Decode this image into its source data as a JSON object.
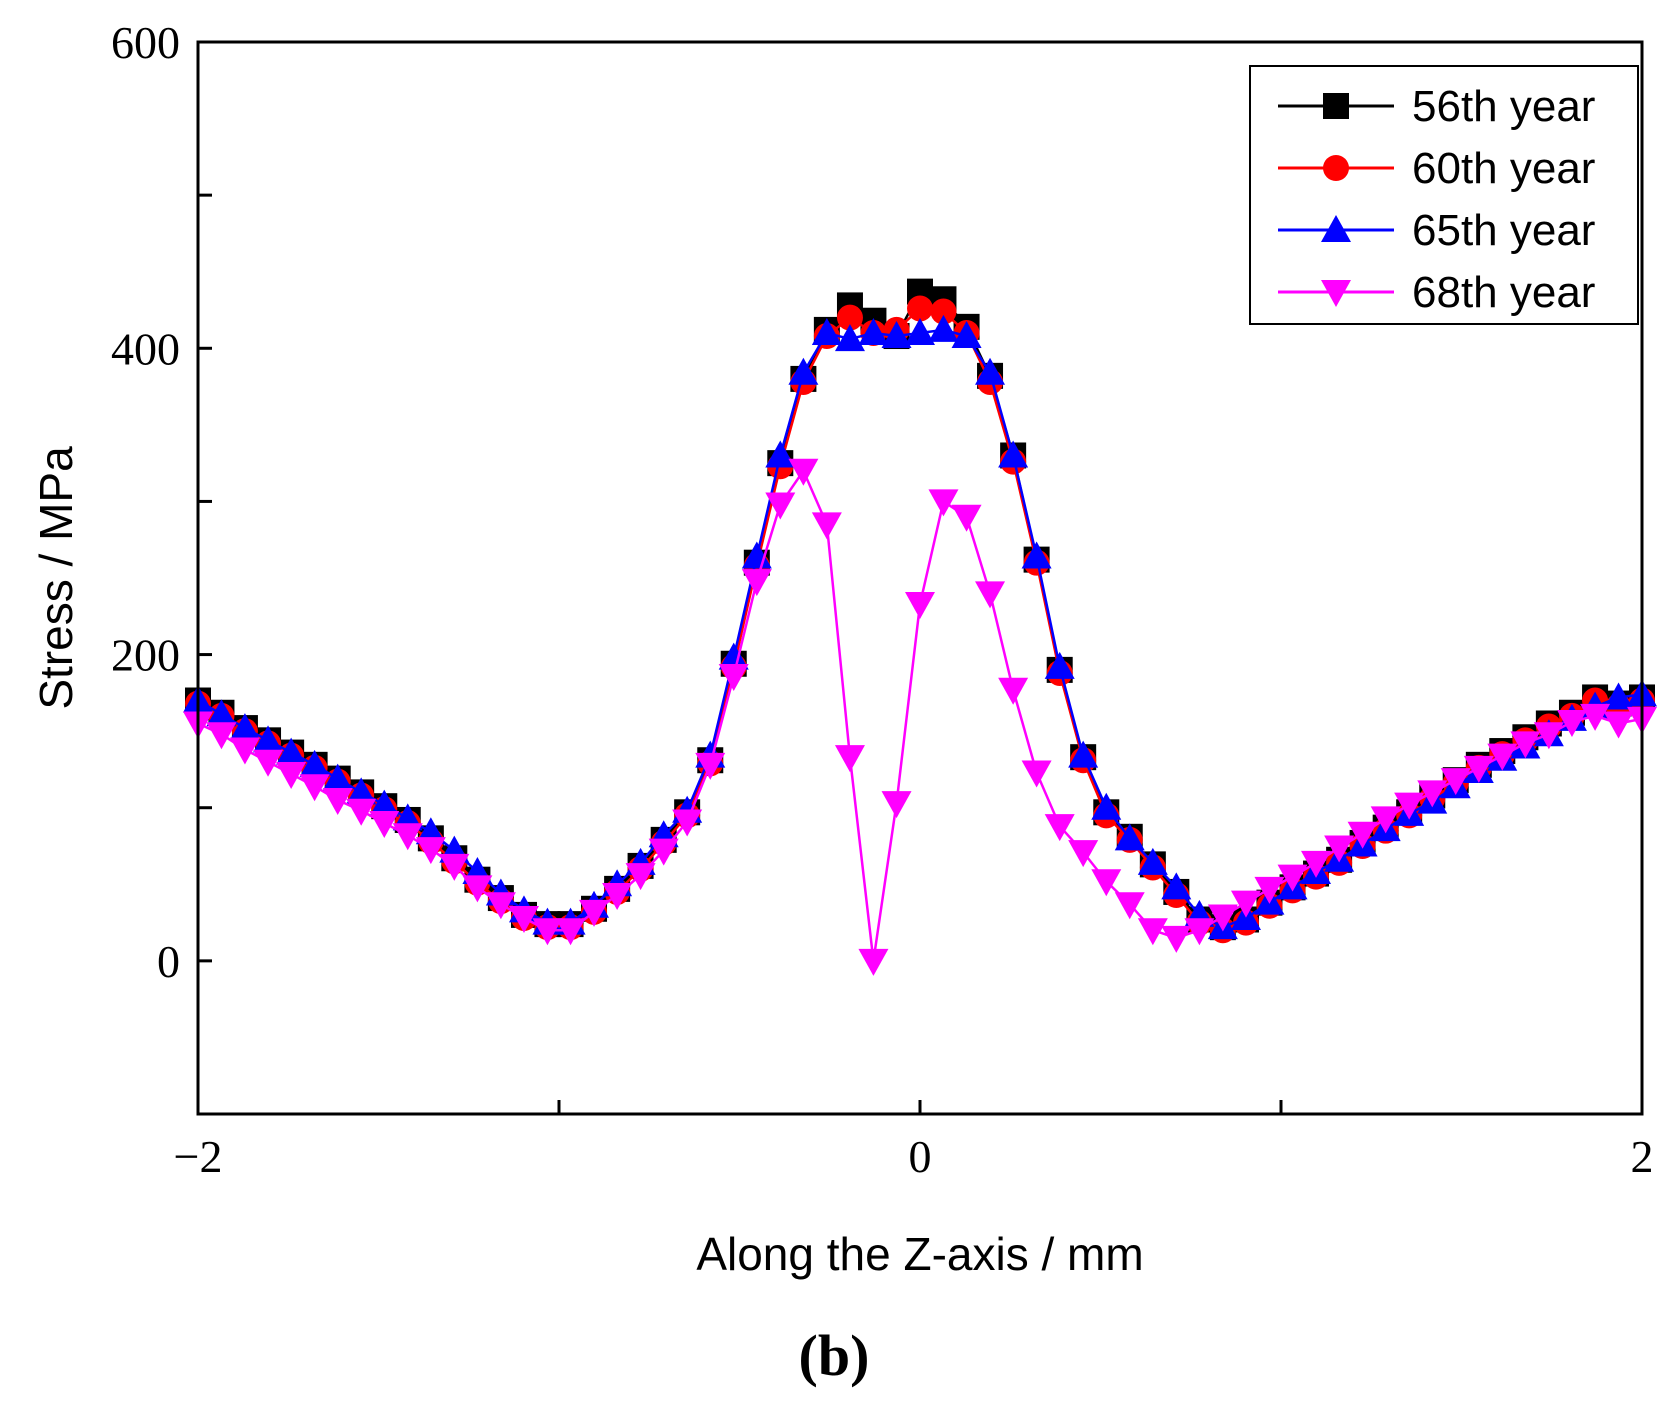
{
  "chart_data": {
    "type": "line",
    "title": "",
    "xlabel": "Along the Z-axis / mm",
    "ylabel": "Stress / MPa",
    "panel_label": "(b)",
    "xlim": [
      -2,
      2
    ],
    "ylim": [
      -100,
      600
    ],
    "x_ticks": [
      -2,
      -1,
      0,
      1,
      2
    ],
    "x_tick_labels": [
      "−2",
      "",
      "0",
      "",
      "2"
    ],
    "y_ticks": [
      0,
      100,
      200,
      300,
      400,
      500,
      600
    ],
    "y_tick_labels": [
      "0",
      "",
      "200",
      "",
      "400",
      "",
      "600"
    ],
    "grid": false,
    "legend_position": "top-right",
    "x": [
      -2.0,
      -1.935,
      -1.87,
      -1.806,
      -1.742,
      -1.677,
      -1.613,
      -1.548,
      -1.484,
      -1.419,
      -1.355,
      -1.29,
      -1.226,
      -1.161,
      -1.097,
      -1.032,
      -0.968,
      -0.903,
      -0.839,
      -0.774,
      -0.71,
      -0.645,
      -0.581,
      -0.516,
      -0.452,
      -0.387,
      -0.323,
      -0.258,
      -0.194,
      -0.129,
      -0.065,
      0.0,
      0.065,
      0.129,
      0.194,
      0.258,
      0.323,
      0.387,
      0.452,
      0.516,
      0.581,
      0.645,
      0.71,
      0.774,
      0.839,
      0.903,
      0.968,
      1.032,
      1.097,
      1.161,
      1.226,
      1.29,
      1.355,
      1.419,
      1.484,
      1.548,
      1.613,
      1.677,
      1.742,
      1.806,
      1.87,
      1.935,
      2.0
    ],
    "series": [
      {
        "name": "56th year",
        "color": "#000000",
        "marker": "square",
        "values": [
          170,
          162,
          152,
          144,
          136,
          128,
          119,
          110,
          101,
          92,
          80,
          67,
          53,
          41,
          30,
          24,
          24,
          34,
          47,
          62,
          79,
          97,
          131,
          194,
          260,
          325,
          380,
          412,
          428,
          418,
          408,
          437,
          432,
          414,
          382,
          330,
          262,
          190,
          133,
          97,
          81,
          63,
          45,
          27,
          22,
          27,
          38,
          48,
          57,
          66,
          77,
          87,
          97,
          108,
          118,
          128,
          137,
          146,
          155,
          162,
          172,
          168,
          172
        ]
      },
      {
        "name": "60th year",
        "color": "#ff0000",
        "marker": "circle",
        "values": [
          168,
          160,
          150,
          142,
          134,
          126,
          117,
          108,
          99,
          90,
          78,
          65,
          51,
          39,
          28,
          22,
          22,
          32,
          45,
          60,
          77,
          95,
          129,
          192,
          258,
          323,
          378,
          408,
          420,
          410,
          412,
          426,
          424,
          410,
          378,
          326,
          260,
          188,
          131,
          95,
          79,
          61,
          43,
          25,
          20,
          25,
          36,
          46,
          55,
          64,
          75,
          85,
          95,
          106,
          116,
          126,
          135,
          144,
          153,
          160,
          170,
          166,
          170
        ]
      },
      {
        "name": "65th year",
        "color": "#0000ff",
        "marker": "triangle-up",
        "values": [
          170,
          161,
          152,
          144,
          136,
          128,
          119,
          110,
          102,
          93,
          84,
          72,
          58,
          44,
          33,
          25,
          25,
          36,
          50,
          64,
          82,
          98,
          134,
          198,
          264,
          330,
          384,
          410,
          406,
          410,
          408,
          410,
          412,
          408,
          384,
          330,
          264,
          192,
          134,
          100,
          80,
          64,
          48,
          30,
          22,
          28,
          38,
          48,
          58,
          66,
          76,
          86,
          96,
          104,
          114,
          124,
          132,
          140,
          148,
          158,
          166,
          172,
          174
        ]
      },
      {
        "name": "68th year",
        "color": "#ff00ff",
        "marker": "triangle-down",
        "values": [
          155,
          148,
          138,
          130,
          122,
          114,
          105,
          98,
          90,
          82,
          73,
          62,
          48,
          37,
          28,
          20,
          20,
          32,
          43,
          56,
          72,
          91,
          128,
          186,
          248,
          298,
          320,
          285,
          133,
          0,
          103,
          233,
          300,
          290,
          240,
          177,
          123,
          88,
          71,
          52,
          37,
          20,
          15,
          20,
          29,
          38,
          47,
          55,
          64,
          74,
          83,
          93,
          102,
          110,
          118,
          126,
          134,
          142,
          148,
          156,
          160,
          155,
          158
        ]
      }
    ]
  }
}
